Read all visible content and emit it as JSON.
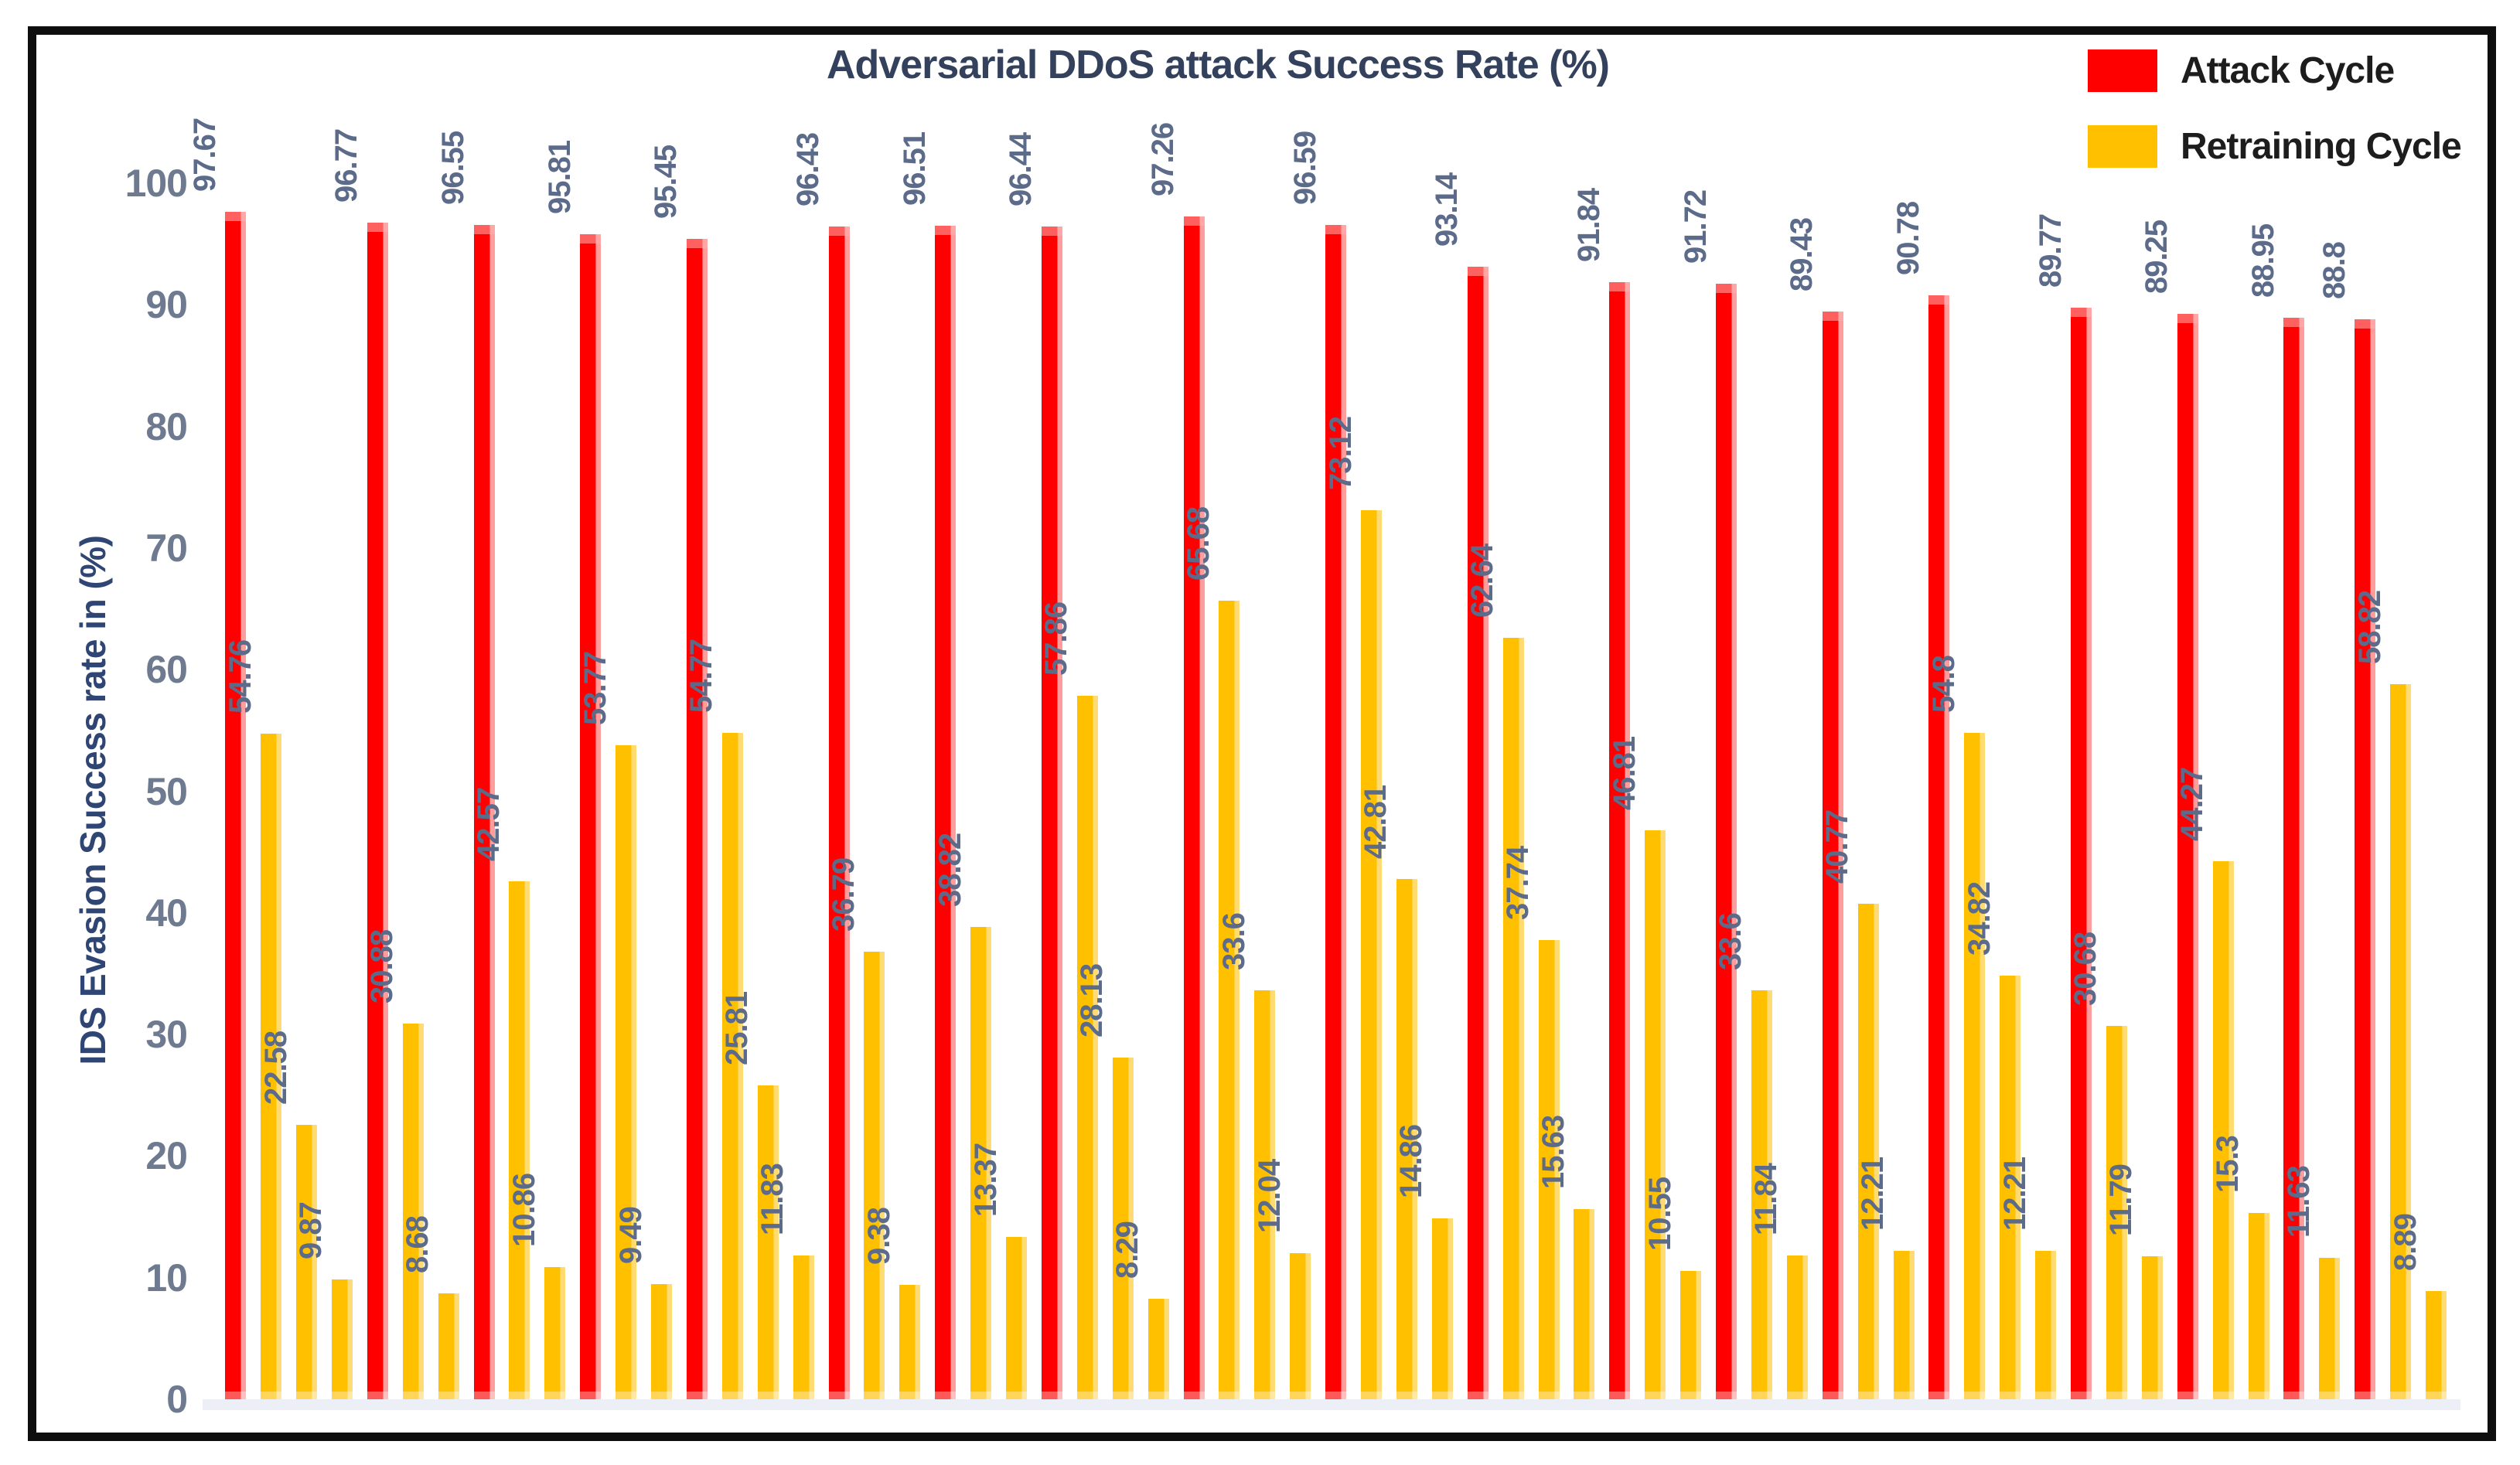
{
  "figure": {
    "title": "Adversarial DDoS attack Success Rate (%)",
    "y_axis_label": "IDS Evasion Success rate in (%)"
  },
  "legend": {
    "items": [
      {
        "label": "Attack Cycle",
        "color": "#FE0000"
      },
      {
        "label": "Retraining Cycle",
        "color": "#FFC000"
      }
    ]
  },
  "colors": {
    "attack_bar": "#FE0000",
    "attack_bar_edge": "#FF9C9C",
    "retraining_bar": "#FFC000",
    "retraining_bar_edge": "#FFDC73",
    "data_label_text": "#5C6B8A",
    "tick_text": "#6E7A90",
    "title_text": "#33415C",
    "y_axis_label_text": "#2F4573",
    "legend_text": "#1d1d1d",
    "baseline": "#ECF0F6",
    "frame_border": "#0e0e0e"
  },
  "chart_data": {
    "type": "bar",
    "title": "Adversarial DDoS attack Success Rate (%)",
    "xlabel": "",
    "ylabel": "IDS Evasion Success rate in (%)",
    "ylim": [
      0,
      100
    ],
    "yticks": [
      0,
      10,
      20,
      30,
      40,
      50,
      60,
      70,
      80,
      90,
      100
    ],
    "grid": false,
    "legend_position": "top-right",
    "x_tick_labels": [],
    "series_names": [
      "Attack Cycle",
      "Retraining Cycle"
    ],
    "note": "Each group = one red Attack Cycle bar followed by its yellow Retraining Cycle bars, drawn left to right; data labels are rotated 90° above each bar.",
    "groups": [
      {
        "attack": "97.67",
        "retraining": [
          "54.76",
          "22.58",
          "9.87"
        ]
      },
      {
        "attack": "96.77",
        "retraining": [
          "30.88",
          "8.68"
        ]
      },
      {
        "attack": "96.55",
        "retraining": [
          "42.57",
          "10.86"
        ]
      },
      {
        "attack": "95.81",
        "retraining": [
          "53.77",
          "9.49"
        ]
      },
      {
        "attack": "95.45",
        "retraining": [
          "54.77",
          "25.81",
          "11.83"
        ]
      },
      {
        "attack": "96.43",
        "retraining": [
          "36.79",
          "9.38"
        ]
      },
      {
        "attack": "96.51",
        "retraining": [
          "38.82",
          "13.37"
        ]
      },
      {
        "attack": "96.44",
        "retraining": [
          "57.86",
          "28.13",
          "8.29"
        ]
      },
      {
        "attack": "97.26",
        "retraining": [
          "65.68",
          "33.6",
          "12.04"
        ]
      },
      {
        "attack": "96.59",
        "retraining": [
          "73.12",
          "42.81",
          "14.86"
        ]
      },
      {
        "attack": "93.14",
        "retraining": [
          "62.64",
          "37.74",
          "15.63"
        ]
      },
      {
        "attack": "91.84",
        "retraining": [
          "46.81",
          "10.55"
        ]
      },
      {
        "attack": "91.72",
        "retraining": [
          "33.6",
          "11.84"
        ]
      },
      {
        "attack": "89.43",
        "retraining": [
          "40.77",
          "12.21"
        ]
      },
      {
        "attack": "90.78",
        "retraining": [
          "54.8",
          "34.82",
          "12.21"
        ]
      },
      {
        "attack": "89.77",
        "retraining": [
          "30.68",
          "11.79"
        ]
      },
      {
        "attack": "89.25",
        "retraining": [
          "44.27",
          "15.3"
        ]
      },
      {
        "attack": "88.95",
        "retraining": [
          "11.63"
        ]
      },
      {
        "attack": "88.8",
        "retraining": [
          "58.82",
          "8.89"
        ]
      }
    ]
  }
}
